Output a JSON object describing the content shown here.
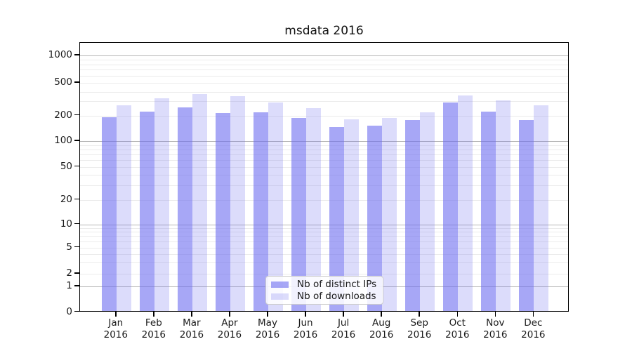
{
  "chart_data": {
    "type": "bar",
    "title": "msdata 2016",
    "categories": [
      "Jan",
      "Feb",
      "Mar",
      "Apr",
      "May",
      "Jun",
      "Jul",
      "Aug",
      "Sep",
      "Oct",
      "Nov",
      "Dec"
    ],
    "category_year": "2016",
    "series": [
      {
        "name": "Nb of distinct IPs",
        "color": "#6c6cf0",
        "alpha": 0.6,
        "values": [
          185,
          215,
          240,
          205,
          210,
          180,
          140,
          145,
          170,
          275,
          215,
          170
        ]
      },
      {
        "name": "Nb of downloads",
        "color": "#6c6cf0",
        "alpha": 0.24,
        "values": [
          255,
          315,
          355,
          335,
          280,
          235,
          175,
          180,
          210,
          345,
          295,
          255
        ]
      }
    ],
    "yscale": "symlog",
    "yticks": [
      0,
      1,
      2,
      5,
      10,
      20,
      50,
      100,
      200,
      500,
      1000
    ],
    "ylim": [
      0,
      1400
    ],
    "grid": true,
    "legend_position": "lower-center",
    "colors": {
      "grid_major": "#b5b5b5",
      "grid_minor": "#ebebeb",
      "spine": "#000000",
      "text": "#1a1a1a"
    }
  }
}
